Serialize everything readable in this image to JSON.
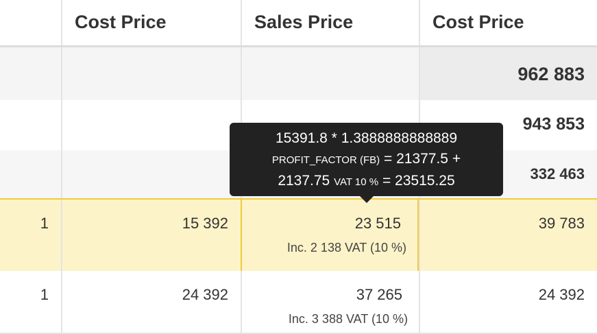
{
  "headers": [
    "Cost Price",
    "Sales Price",
    "Cost Price"
  ],
  "summary": {
    "total": "962 883",
    "subtotal_1": "943 853",
    "subtotal_2": "332 463"
  },
  "rows": [
    {
      "qty": "1",
      "cost": "15 392",
      "sales": "23 515",
      "vat": "Inc. 2 138 VAT (10 %)",
      "cost2": "39 783",
      "selected": true
    },
    {
      "qty": "1",
      "cost": "24 392",
      "sales": "37 265",
      "vat": "Inc. 3 388 VAT (10 %)",
      "cost2": "24 392",
      "selected": false
    }
  ],
  "tooltip": {
    "line1": "15391.8 * 1.3888888888889",
    "factor_label": "PROFIT_FACTOR (FB)",
    "line2_rest": " = 21377.5 +",
    "line3_start": "2137.75 ",
    "vat_label": "VAT 10 %",
    "line3_rest": " = 23515.25"
  },
  "colors": {
    "selection_fill": "#fdf3c8",
    "selection_border": "#f0cc3a",
    "tooltip_bg": "#222222"
  }
}
